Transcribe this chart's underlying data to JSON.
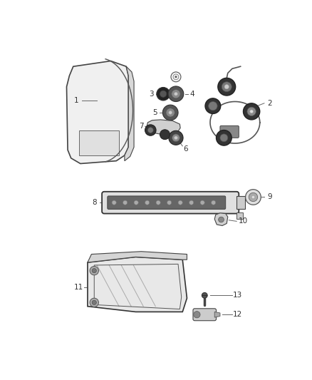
{
  "bg_color": "#ffffff",
  "fig_width": 4.38,
  "fig_height": 5.33,
  "dpi": 100,
  "line_color": "#555555",
  "dark_color": "#333333",
  "gray": "#888888"
}
